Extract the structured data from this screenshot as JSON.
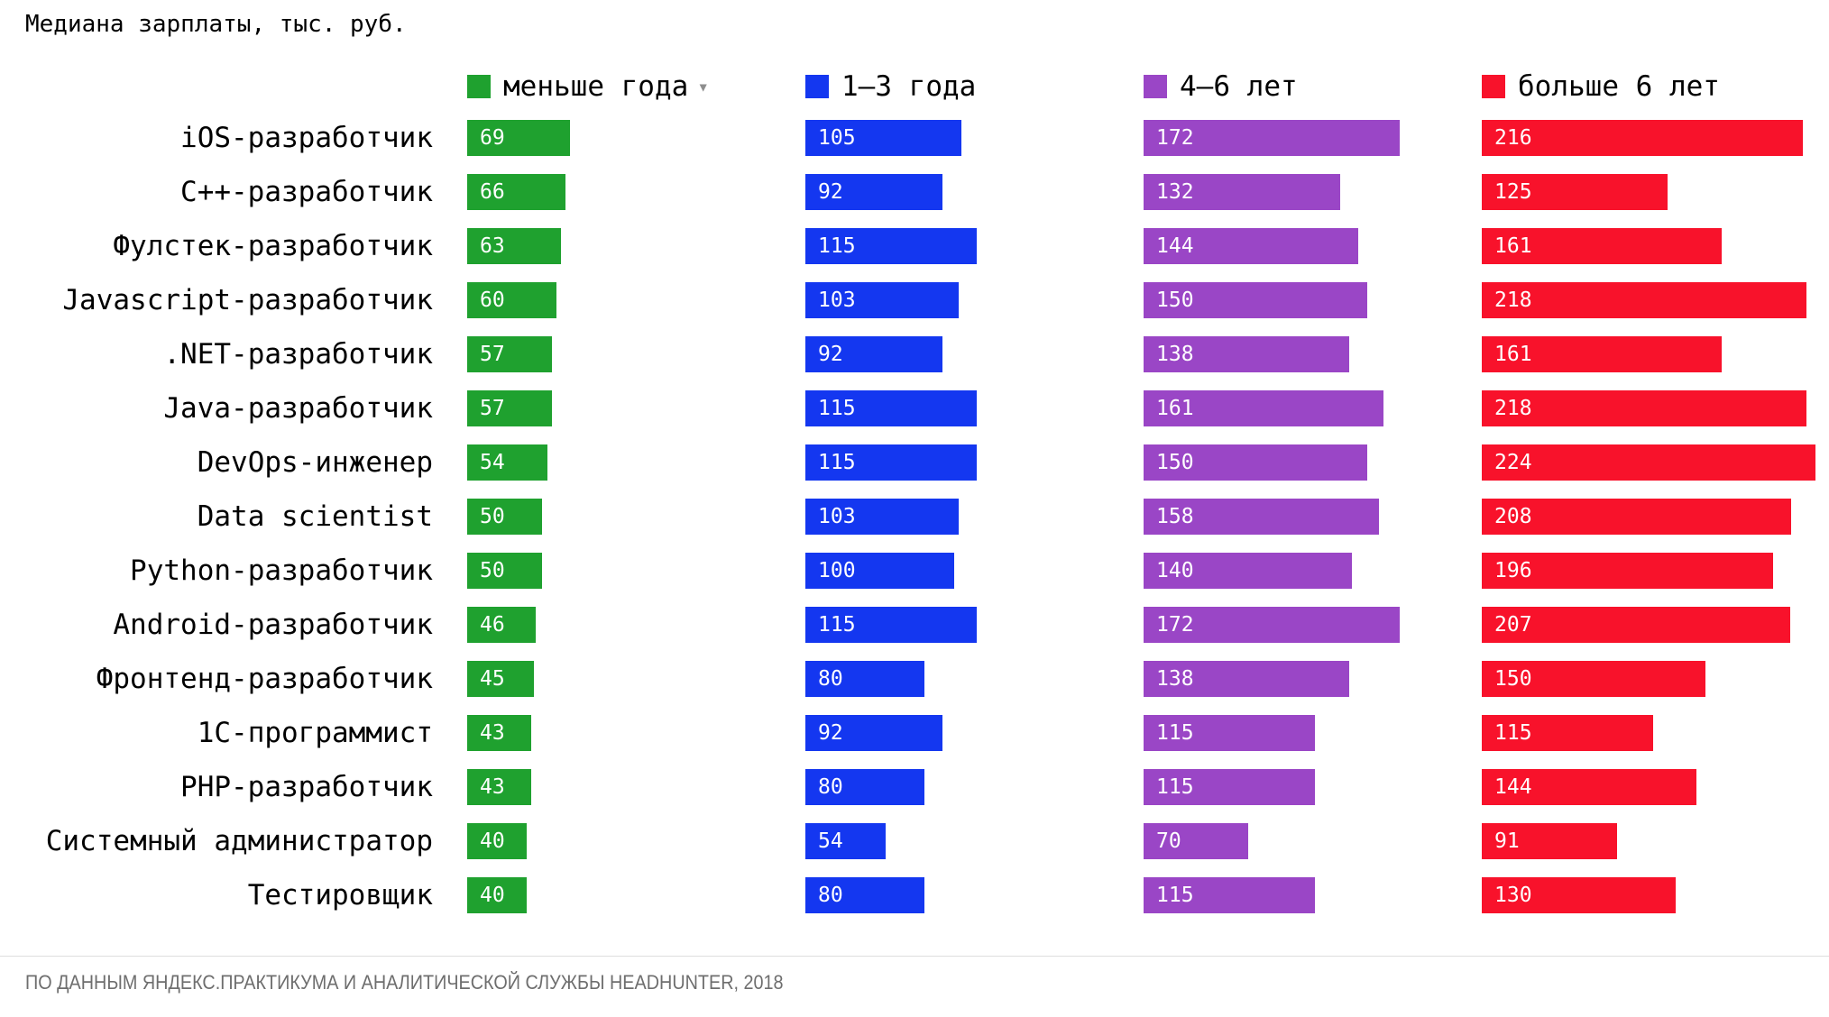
{
  "title": "Медиана зарплаты, тыс. руб.",
  "source": "ПО ДАННЫМ ЯНДЕКС.ПРАКТИКУМА И АНАЛИТИЧЕСКОЙ СЛУЖБЫ HEADHUNTER, 2018",
  "icons": {
    "sort_arrow": "▾"
  },
  "chart_data": {
    "type": "bar",
    "orientation": "horizontal",
    "title": "Медиана зарплаты, тыс. руб.",
    "value_labels": "inside-left",
    "legend_position": "top",
    "grid": false,
    "xlim": [
      0,
      227
    ],
    "categories": [
      "iOS-разработчик",
      "C++-разработчик",
      "Фулстек-разработчик",
      "Javascript-разработчик",
      ".NET-разработчик",
      "Java-разработчик",
      "DevOps-инженер",
      "Data scientist",
      "Python-разработчик",
      "Android-разработчик",
      "Фронтенд-разработчик",
      "1C-программист",
      "PHP-разработчик",
      "Системный администратор",
      "Тестировщик"
    ],
    "series": [
      {
        "name": "меньше года",
        "color": "#1FA12F",
        "sorted_desc": true,
        "values": [
          69,
          66,
          63,
          60,
          57,
          57,
          54,
          50,
          50,
          46,
          45,
          43,
          43,
          40,
          40
        ]
      },
      {
        "name": "1–3 года",
        "color": "#1437F0",
        "sorted_desc": false,
        "values": [
          105,
          92,
          115,
          103,
          92,
          115,
          115,
          103,
          100,
          115,
          80,
          92,
          80,
          54,
          80
        ]
      },
      {
        "name": "4–6 лет",
        "color": "#9A46C6",
        "sorted_desc": false,
        "values": [
          172,
          132,
          144,
          150,
          138,
          161,
          150,
          158,
          140,
          172,
          138,
          115,
          115,
          70,
          115
        ]
      },
      {
        "name": "больше 6 лет",
        "color": "#F8122B",
        "sorted_desc": false,
        "values": [
          216,
          125,
          161,
          218,
          161,
          218,
          224,
          208,
          196,
          207,
          150,
          115,
          144,
          91,
          130
        ]
      }
    ]
  }
}
